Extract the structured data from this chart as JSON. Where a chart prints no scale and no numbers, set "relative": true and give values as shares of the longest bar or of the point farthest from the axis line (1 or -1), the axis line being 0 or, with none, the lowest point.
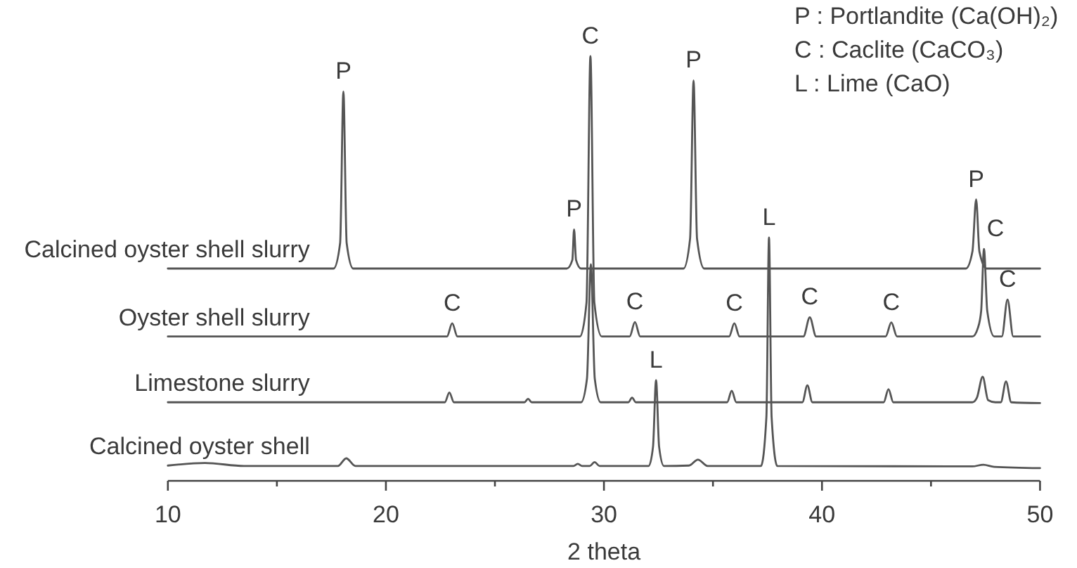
{
  "chart_data": {
    "type": "line",
    "relative": true,
    "xlabel": "2 theta",
    "xlim": [
      10,
      50
    ],
    "xticks": [
      10,
      {
        "value": 15,
        "label": null
      },
      20,
      {
        "value": 25,
        "label": null
      },
      30,
      {
        "value": 35,
        "label": null
      },
      40,
      {
        "value": 45,
        "label": null
      },
      50
    ],
    "series": [
      {
        "name": "Calcined oyster shell slurry",
        "color": "#555555",
        "x": [
          10,
          17.6,
          17.9,
          18.05,
          18.2,
          18.5,
          28.3,
          28.55,
          28.63,
          28.72,
          28.95,
          33.65,
          33.95,
          34.11,
          34.27,
          34.6,
          46.6,
          46.9,
          47.07,
          47.22,
          47.55,
          50
        ],
        "values": [
          0.5,
          0.5,
          0.56,
          0.917,
          0.56,
          0.5,
          0.5,
          0.52,
          0.592,
          0.52,
          0.5,
          0.5,
          0.57,
          0.943,
          0.57,
          0.5,
          0.5,
          0.54,
          0.663,
          0.54,
          0.5,
          0.5
        ]
      },
      {
        "name": "Oyster shell slurry",
        "color": "#555555",
        "x": [
          10,
          22.8,
          23.04,
          23.28,
          28.9,
          29.2,
          29.38,
          29.56,
          29.9,
          31.18,
          31.42,
          31.66,
          35.74,
          35.98,
          36.22,
          39.15,
          39.44,
          39.73,
          42.92,
          43.18,
          43.44,
          46.9,
          47.15,
          47.3,
          47.43,
          47.58,
          47.9,
          48.25,
          48.51,
          48.77,
          50
        ],
        "values": [
          0.34,
          0.34,
          0.371,
          0.34,
          0.34,
          0.42,
          1.0,
          0.42,
          0.34,
          0.34,
          0.374,
          0.34,
          0.34,
          0.371,
          0.34,
          0.34,
          0.385,
          0.34,
          0.34,
          0.373,
          0.34,
          0.34,
          0.36,
          0.4,
          0.546,
          0.4,
          0.34,
          0.34,
          0.427,
          0.34,
          0.34
        ]
      },
      {
        "name": "Limestone slurry",
        "color": "#555555",
        "x": [
          10,
          22.7,
          22.91,
          23.12,
          26.35,
          26.52,
          26.69,
          28.95,
          29.22,
          29.4,
          29.58,
          29.85,
          31.12,
          31.29,
          31.46,
          35.65,
          35.86,
          36.07,
          39.1,
          39.33,
          39.56,
          42.83,
          43.05,
          43.27,
          46.9,
          47.1,
          47.37,
          47.62,
          47.95,
          48.2,
          48.44,
          48.68,
          50
        ],
        "values": [
          0.185,
          0.185,
          0.208,
          0.185,
          0.185,
          0.193,
          0.185,
          0.185,
          0.24,
          0.51,
          0.24,
          0.185,
          0.185,
          0.196,
          0.185,
          0.185,
          0.212,
          0.185,
          0.185,
          0.225,
          0.185,
          0.185,
          0.216,
          0.185,
          0.185,
          0.195,
          0.245,
          0.19,
          0.185,
          0.185,
          0.234,
          0.185,
          0.183
        ]
      },
      {
        "name": "Calcined oyster shell",
        "color": "#555555",
        "x": [
          10,
          11.7,
          13.5,
          17.8,
          18.18,
          18.6,
          28.6,
          28.8,
          29.0,
          29.35,
          29.57,
          29.8,
          32.05,
          32.25,
          32.39,
          32.53,
          32.75,
          33.9,
          34.31,
          34.75,
          37.2,
          37.45,
          37.57,
          37.69,
          37.95,
          46.9,
          47.4,
          47.9,
          50
        ],
        "values": [
          0.036,
          0.042,
          0.035,
          0.035,
          0.053,
          0.035,
          0.035,
          0.04,
          0.035,
          0.035,
          0.044,
          0.035,
          0.035,
          0.08,
          0.237,
          0.08,
          0.035,
          0.036,
          0.05,
          0.035,
          0.035,
          0.15,
          0.573,
          0.15,
          0.035,
          0.034,
          0.038,
          0.033,
          0.03
        ]
      }
    ],
    "annotations": [
      "P : Portlandite (Ca(OH)₂)",
      "C : Caclite (CaCO₃)",
      "L : Lime (CaO)",
      {
        "text": "P",
        "x": 18.05,
        "y": 0.917
      },
      {
        "text": "C",
        "x": 29.38,
        "y": 1.0
      },
      {
        "text": "P",
        "x": 34.11,
        "y": 0.943
      },
      {
        "text": "P",
        "x": 28.63,
        "y": 0.592
      },
      {
        "text": "L",
        "x": 37.57,
        "y": 0.573
      },
      {
        "text": "P",
        "x": 47.07,
        "y": 0.663
      },
      {
        "text": "C",
        "x": 47.43,
        "y": 0.546
      },
      {
        "text": "C",
        "x": 48.51,
        "y": 0.427
      },
      {
        "text": "C",
        "x": 23.04,
        "y": 0.371
      },
      {
        "text": "C",
        "x": 31.42,
        "y": 0.374
      },
      {
        "text": "C",
        "x": 35.98,
        "y": 0.371
      },
      {
        "text": "C",
        "x": 39.44,
        "y": 0.385
      },
      {
        "text": "C",
        "x": 43.18,
        "y": 0.373
      },
      {
        "text": "L",
        "x": 32.39,
        "y": 0.237
      }
    ]
  }
}
